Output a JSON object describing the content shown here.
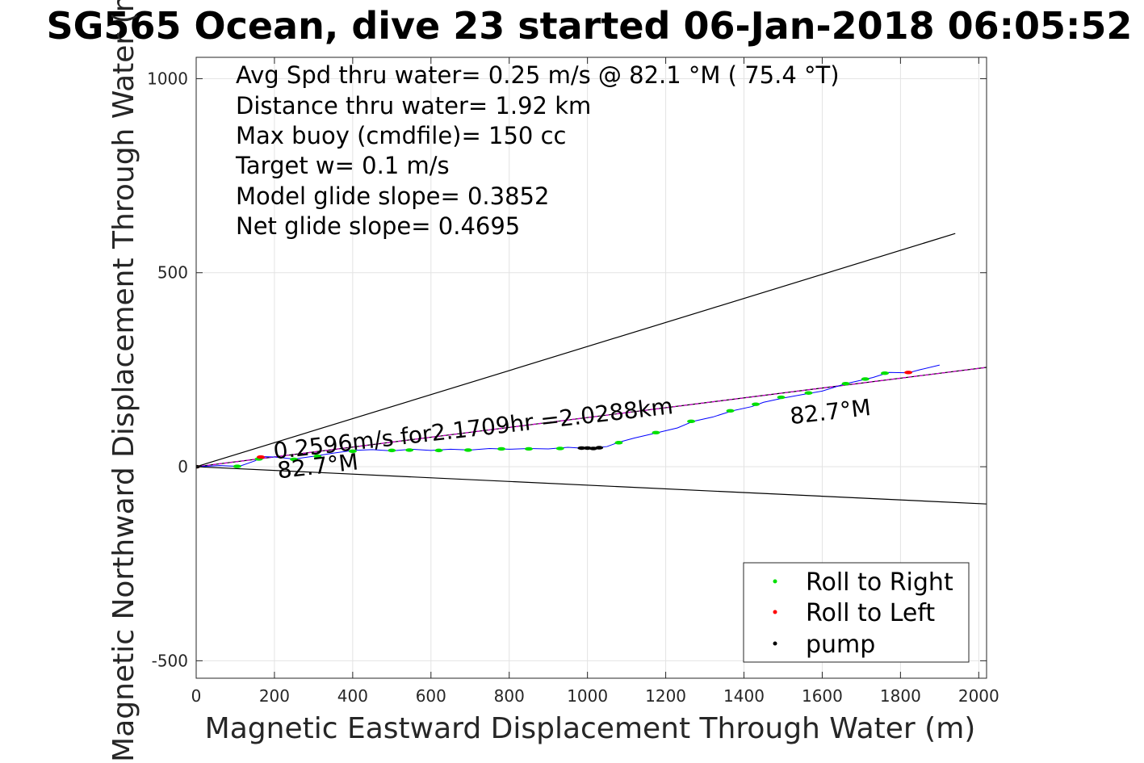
{
  "chart_data": {
    "type": "line",
    "title": "SG565 Ocean, dive 23 started 06-Jan-2018 06:05:52",
    "xlabel": "Magnetic Eastward Displacement Through Water (m)",
    "ylabel": "Magnetic Northward Displacement Through Water (m)",
    "xlim": [
      0,
      2020
    ],
    "ylim": [
      -545,
      1055
    ],
    "xticks": [
      0,
      200,
      400,
      600,
      800,
      1000,
      1200,
      1400,
      1600,
      1800,
      2000
    ],
    "yticks": [
      -500,
      0,
      500,
      1000
    ],
    "grid": true,
    "info_lines": [
      "Avg Spd thru water=  0.25 m/s @  82.1 °M ( 75.4 °T)",
      "Distance thru water=  1.92 km",
      "Max buoy (cmdfile)= 150 cc",
      "Target w= 0.1 m/s",
      "Model glide slope= 0.3852",
      "Net glide slope= 0.4695"
    ],
    "annotations": [
      {
        "text": "0.2596m/s for2.1709hr =2.0288km",
        "x": 200,
        "y": 20,
        "angle": -6.5
      },
      {
        "text": "82.7°M",
        "x": 210,
        "y": -30,
        "angle": -6.5
      },
      {
        "text": "82.7°M",
        "x": 1520,
        "y": 110,
        "angle": -6.5
      }
    ],
    "legend": {
      "position": "bottom-right",
      "entries": [
        {
          "label": "Roll to Right",
          "color": "#00e000"
        },
        {
          "label": "Roll to Left",
          "color": "#ff0000"
        },
        {
          "label": "pump",
          "color": "#000000"
        }
      ]
    },
    "reference_lines": [
      {
        "name": "upper bound",
        "color": "#000000",
        "x": [
          0,
          1940
        ],
        "y": [
          0,
          601
        ]
      },
      {
        "name": "lower bound",
        "color": "#000000",
        "x": [
          0,
          2020
        ],
        "y": [
          0,
          -96
        ]
      },
      {
        "name": "heading",
        "color": "#000000",
        "x": [
          0,
          2020
        ],
        "y": [
          0,
          256
        ]
      },
      {
        "name": "heading overlay",
        "color": "#cc00cc",
        "dashed": true,
        "x": [
          0,
          2020
        ],
        "y": [
          0,
          256
        ]
      }
    ],
    "track": {
      "color": "#0000ff",
      "x": [
        0,
        60,
        110,
        150,
        170,
        200,
        250,
        300,
        350,
        400,
        450,
        500,
        550,
        600,
        650,
        700,
        750,
        800,
        850,
        900,
        950,
        1000,
        1050,
        1080,
        1120,
        1180,
        1230,
        1270,
        1320,
        1370,
        1420,
        1450,
        1500,
        1550,
        1600,
        1660,
        1700,
        1730,
        1770,
        1820,
        1850,
        1900
      ],
      "y": [
        0,
        3,
        1,
        15,
        26,
        25,
        20,
        27,
        35,
        42,
        44,
        41,
        45,
        42,
        45,
        43,
        47,
        45,
        47,
        46,
        50,
        47,
        52,
        63,
        74,
        88,
        100,
        117,
        128,
        144,
        155,
        166,
        177,
        186,
        195,
        214,
        223,
        230,
        243,
        242,
        250,
        262
      ]
    },
    "roll_right": {
      "color": "#00e000",
      "x": [
        105,
        160,
        250,
        310,
        400,
        500,
        545,
        620,
        695,
        780,
        850,
        930,
        1080,
        1175,
        1265,
        1365,
        1430,
        1495,
        1565,
        1660,
        1710,
        1760
      ],
      "y": [
        1,
        20,
        19,
        27,
        40,
        42,
        43,
        42,
        43,
        46,
        46,
        47,
        62,
        88,
        117,
        144,
        161,
        179,
        190,
        214,
        226,
        241
      ]
    },
    "roll_left": {
      "color": "#ff0000",
      "x": [
        0,
        165,
        1820
      ],
      "y": [
        0,
        25,
        243
      ]
    },
    "pump": {
      "color": "#000000",
      "x": [
        0,
        985,
        1000,
        1015,
        1030
      ],
      "y": [
        0,
        48,
        48,
        47,
        49
      ]
    }
  }
}
